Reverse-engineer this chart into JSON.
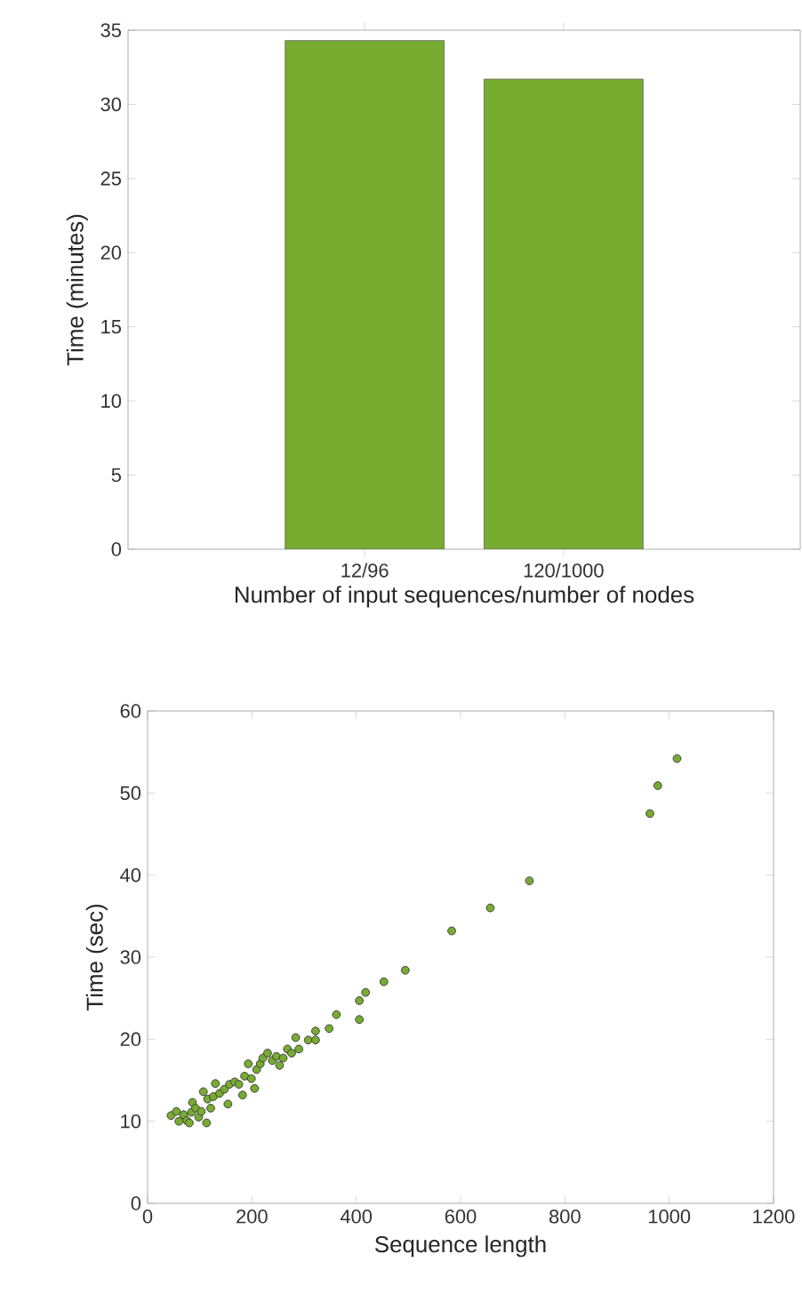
{
  "chart_data": [
    {
      "type": "bar",
      "xlabel": "Number of input sequences/number of nodes",
      "ylabel": "Time (minutes)",
      "categories": [
        "12/96",
        "120/1000"
      ],
      "values": [
        34.3,
        31.7
      ],
      "color": "#77ac30",
      "ylim": [
        0,
        35
      ],
      "yticks": [
        0,
        5,
        10,
        15,
        20,
        25,
        30,
        35
      ]
    },
    {
      "type": "scatter",
      "xlabel": "Sequence length",
      "ylabel": "Time (sec)",
      "xlim": [
        0,
        1200
      ],
      "xticks": [
        0,
        200,
        400,
        600,
        800,
        1000,
        1200
      ],
      "ylim": [
        0,
        60
      ],
      "yticks": [
        0,
        10,
        20,
        30,
        40,
        50,
        60
      ],
      "marker": "circle",
      "series": [
        {
          "color": "#77ac30",
          "x": [
            45,
            55,
            60,
            69,
            75,
            80,
            84,
            86,
            92,
            98,
            103,
            107,
            113,
            115,
            121,
            126,
            130,
            138,
            147,
            154,
            157,
            167,
            175,
            182,
            186,
            193,
            199,
            205,
            209,
            216,
            221,
            230,
            239,
            247,
            253,
            260,
            268,
            276,
            284,
            290,
            308,
            322,
            322,
            348,
            362,
            406,
            406,
            418,
            453,
            494,
            583,
            657,
            732,
            963,
            978,
            1015
          ],
          "values": [
            10.7,
            11.2,
            10.0,
            10.8,
            10.1,
            9.8,
            11.1,
            12.3,
            11.6,
            10.5,
            11.2,
            13.6,
            9.8,
            12.7,
            11.6,
            13.0,
            14.6,
            13.4,
            13.9,
            12.1,
            14.5,
            14.8,
            14.5,
            13.2,
            15.5,
            17.0,
            15.2,
            14.0,
            16.3,
            17.0,
            17.7,
            18.3,
            17.4,
            17.9,
            16.8,
            17.7,
            18.8,
            18.3,
            20.2,
            18.8,
            19.9,
            21.0,
            19.9,
            21.3,
            23.0,
            22.4,
            24.7,
            25.7,
            27.0,
            28.4,
            33.2,
            36.0,
            39.3,
            47.5,
            50.9,
            54.2
          ]
        }
      ]
    }
  ]
}
